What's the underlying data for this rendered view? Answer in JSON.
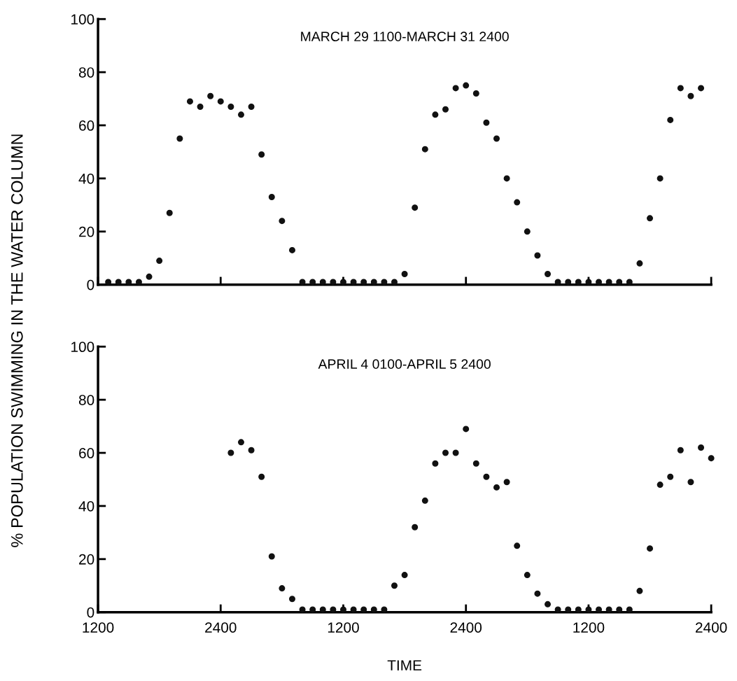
{
  "chart_data": [
    {
      "type": "scatter",
      "title": "MARCH 29 1100-MARCH 31 2400",
      "ylabel": "% POPULATION SWIMMING IN THE WATER COLUMN",
      "categories": [
        "1200",
        null,
        null,
        null,
        null,
        null,
        null,
        null,
        null,
        null,
        null,
        null,
        "2400",
        null,
        null,
        null,
        null,
        null,
        null,
        null,
        null,
        null,
        null,
        null,
        "1200",
        null,
        null,
        null,
        null,
        null,
        null,
        null,
        null,
        null,
        null,
        null,
        "2400",
        null,
        null,
        null,
        null,
        null,
        null,
        null,
        null,
        null,
        null,
        null,
        "1200",
        null,
        null,
        null,
        null,
        null,
        null,
        null,
        null,
        null,
        null,
        null,
        "2400"
      ],
      "series": [
        {
          "color": "#111111",
          "values": [
            null,
            1,
            1,
            1,
            1,
            3,
            9,
            27,
            55,
            69,
            67,
            71,
            69,
            67,
            64,
            67,
            49,
            33,
            24,
            13,
            1,
            1,
            1,
            1,
            1,
            1,
            1,
            1,
            1,
            1,
            4,
            29,
            51,
            64,
            66,
            74,
            75,
            72,
            61,
            55,
            40,
            31,
            20,
            11,
            4,
            1,
            1,
            1,
            1,
            1,
            1,
            1,
            1,
            8,
            25,
            40,
            62,
            74,
            71,
            74,
            null
          ]
        }
      ],
      "ylim": [
        0,
        100
      ],
      "yticks": [
        0,
        20,
        40,
        60,
        80,
        100
      ],
      "tick_labels": "y",
      "marker": "circle",
      "grid": false,
      "legend": false
    },
    {
      "type": "scatter",
      "title": "APRIL 4 0100-APRIL 5 2400",
      "xlabel": "TIME",
      "categories": [
        "1200",
        null,
        null,
        null,
        null,
        null,
        null,
        null,
        null,
        null,
        null,
        null,
        "2400",
        null,
        null,
        null,
        null,
        null,
        null,
        null,
        null,
        null,
        null,
        null,
        "1200",
        null,
        null,
        null,
        null,
        null,
        null,
        null,
        null,
        null,
        null,
        null,
        "2400",
        null,
        null,
        null,
        null,
        null,
        null,
        null,
        null,
        null,
        null,
        null,
        "1200",
        null,
        null,
        null,
        null,
        null,
        null,
        null,
        null,
        null,
        null,
        null,
        "2400"
      ],
      "series": [
        {
          "color": "#111111",
          "values": [
            null,
            null,
            null,
            null,
            null,
            null,
            null,
            null,
            null,
            null,
            null,
            null,
            null,
            60,
            64,
            61,
            51,
            21,
            9,
            5,
            1,
            1,
            1,
            1,
            1,
            1,
            1,
            1,
            1,
            10,
            14,
            32,
            42,
            56,
            60,
            60,
            69,
            56,
            51,
            47,
            49,
            25,
            14,
            7,
            3,
            1,
            1,
            1,
            1,
            1,
            1,
            1,
            1,
            8,
            24,
            48,
            51,
            61,
            49,
            62,
            58
          ]
        }
      ],
      "ylim": [
        0,
        100
      ],
      "yticks": [
        0,
        20,
        40,
        60,
        80,
        100
      ],
      "marker": "circle",
      "grid": false,
      "legend": false
    }
  ]
}
